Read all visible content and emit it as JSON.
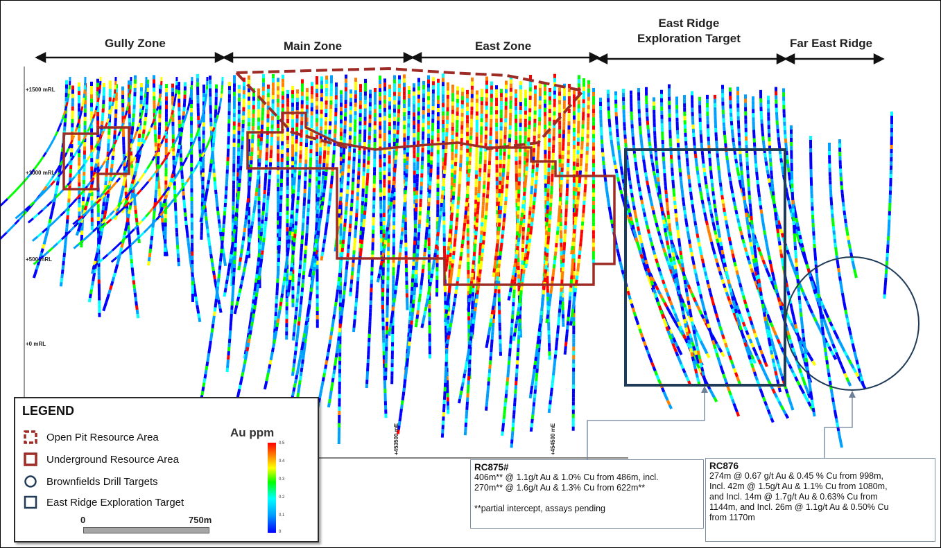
{
  "zones": [
    {
      "label": "Gully Zone"
    },
    {
      "label": "Main Zone"
    },
    {
      "label": "East Zone"
    },
    {
      "label": "East Ridge\nExploration Target"
    },
    {
      "label": "Far East Ridge"
    }
  ],
  "elevation_ticks": [
    "+1500 mRL",
    "+1000 mRL",
    "+500 mRL",
    "+0 mRL"
  ],
  "easting_ticks": [
    "+453500 mE",
    "+454500 mE"
  ],
  "legend": {
    "title": "LEGEND",
    "items": [
      {
        "label": "Open Pit Resource Area",
        "symbol": "dashed-square-icon",
        "color": "#9e2b25"
      },
      {
        "label": "Underground Resource Area",
        "symbol": "solid-square-icon",
        "color": "#9e2b25"
      },
      {
        "label": "Brownfields Drill Targets",
        "symbol": "circle-icon",
        "color": "#1f3b57"
      },
      {
        "label": "East Ridge Exploration Target",
        "symbol": "square-outline-icon",
        "color": "#1f3b57"
      }
    ],
    "scale_title": "Au ppm",
    "scale_ticks": [
      "0.5",
      "0.4",
      "0.3",
      "0.2",
      "0.1",
      "0"
    ],
    "scale_bar": {
      "start": "0",
      "end": "750m"
    }
  },
  "callouts": [
    {
      "id": "RC875#",
      "lines": [
        "406m** @ 1.1g/t Au & 1.0% Cu from 486m, incl.",
        "270m** @ 1.6g/t Au & 1.3% Cu from 622m**",
        "",
        "**partial intercept, assays pending"
      ]
    },
    {
      "id": "RC876",
      "lines": [
        "274m @ 0.67 g/t Au & 0.45 % Cu from 998m,",
        "Incl. 42m @ 1.5g/t Au & 1.1% Cu from 1080m,",
        "and Incl. 14m @ 1.7g/t Au & 0.63% Cu from",
        "1144m, and Incl. 26m @ 1.1g/t Au & 0.50% Cu",
        "from 1170m"
      ]
    }
  ],
  "colors": {
    "resource_outline": "#9e2b25",
    "target_outline": "#1f3b57",
    "au_scale": [
      "#0000ff",
      "#00a0ff",
      "#00ffff",
      "#00ff00",
      "#ffff00",
      "#ff8000",
      "#ff0000"
    ]
  }
}
